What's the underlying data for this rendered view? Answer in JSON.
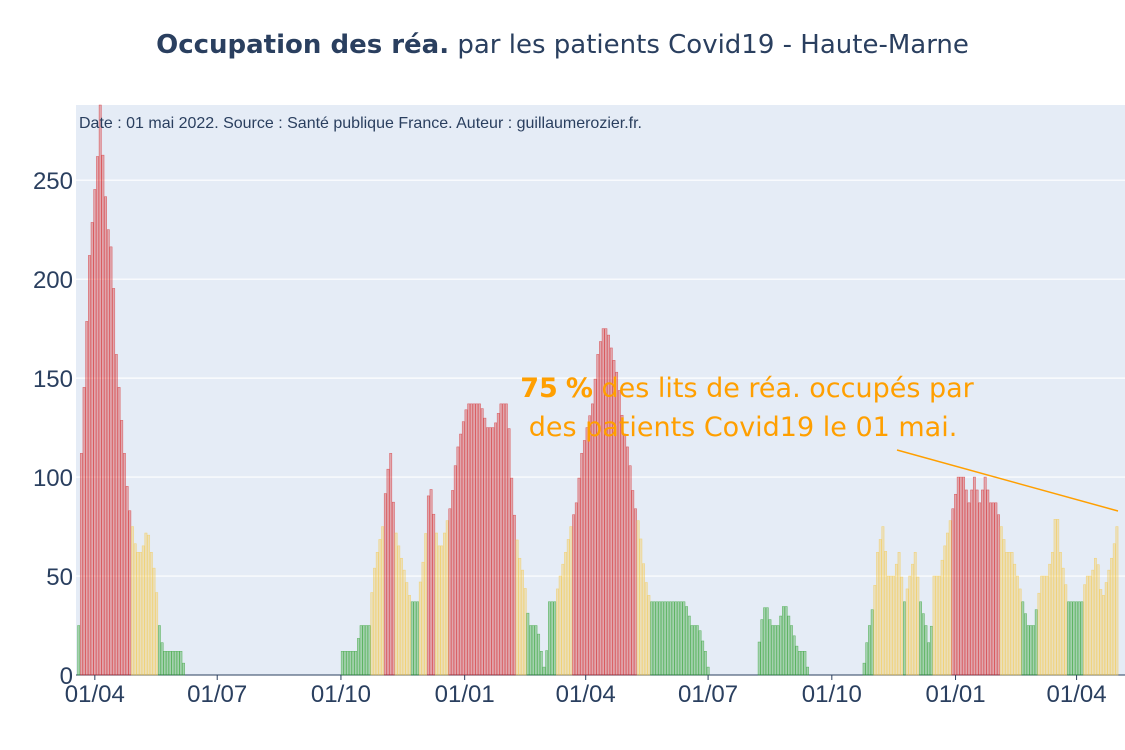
{
  "chart_data": {
    "type": "bar",
    "title_bold": "Occupation des réa.",
    "title_rest": " par les patients Covid19 - Haute-Marne",
    "source_note": "Date : 01 mai 2022. Source : Santé publique France. Auteur : guillaumerozier.fr.",
    "annotation": {
      "value": "75",
      "percent": "%",
      "line1_rest": " des lits de réa. occupés par",
      "line2": "des patients Covid19 le 01 mai."
    },
    "x_ticks": [
      {
        "label": "01/04",
        "date": "2020-04-01"
      },
      {
        "label": "01/07",
        "date": "2020-07-01"
      },
      {
        "label": "01/10",
        "date": "2020-10-01"
      },
      {
        "label": "01/01",
        "date": "2021-01-01"
      },
      {
        "label": "01/04",
        "date": "2021-04-01"
      },
      {
        "label": "01/07",
        "date": "2021-07-01"
      },
      {
        "label": "01/10",
        "date": "2021-10-01"
      },
      {
        "label": "01/01",
        "date": "2022-01-01"
      },
      {
        "label": "01/04",
        "date": "2022-04-01"
      }
    ],
    "y_ticks": [
      0,
      50,
      100,
      150,
      200,
      250
    ],
    "ylim": [
      0,
      288
    ],
    "xlim": [
      "2020-03-18",
      "2022-05-07"
    ],
    "colors": {
      "green": "#2ca02c",
      "yellow": "#f5c94a",
      "red": "#d62728",
      "annotation": "#ff9f00",
      "plot_bg": "#e5ecf6",
      "grid": "#ffffff",
      "text": "#2a3f5f"
    },
    "color_thresholds": {
      "green_below": 40,
      "red_from": 80
    },
    "series_points": [
      [
        "2020-03-18",
        0
      ],
      [
        "2020-03-20",
        25
      ],
      [
        "2020-03-22",
        112
      ],
      [
        "2020-03-25",
        162
      ],
      [
        "2020-03-28",
        212
      ],
      [
        "2020-03-31",
        237
      ],
      [
        "2020-04-03",
        262
      ],
      [
        "2020-04-05",
        288
      ],
      [
        "2020-04-08",
        250
      ],
      [
        "2020-04-11",
        225
      ],
      [
        "2020-04-14",
        212
      ],
      [
        "2020-04-17",
        162
      ],
      [
        "2020-04-20",
        137
      ],
      [
        "2020-04-23",
        112
      ],
      [
        "2020-04-26",
        87
      ],
      [
        "2020-04-29",
        75
      ],
      [
        "2020-05-02",
        62
      ],
      [
        "2020-05-06",
        62
      ],
      [
        "2020-05-10",
        75
      ],
      [
        "2020-05-13",
        62
      ],
      [
        "2020-05-16",
        50
      ],
      [
        "2020-05-19",
        25
      ],
      [
        "2020-05-22",
        12
      ],
      [
        "2020-05-30",
        12
      ],
      [
        "2020-06-05",
        12
      ],
      [
        "2020-06-07",
        0
      ],
      [
        "2020-09-30",
        0
      ],
      [
        "2020-10-02",
        12
      ],
      [
        "2020-10-12",
        12
      ],
      [
        "2020-10-16",
        25
      ],
      [
        "2020-10-22",
        25
      ],
      [
        "2020-10-25",
        50
      ],
      [
        "2020-10-28",
        62
      ],
      [
        "2020-11-01",
        75
      ],
      [
        "2020-11-04",
        100
      ],
      [
        "2020-11-07",
        112
      ],
      [
        "2020-11-10",
        75
      ],
      [
        "2020-11-14",
        62
      ],
      [
        "2020-11-18",
        50
      ],
      [
        "2020-11-22",
        37
      ],
      [
        "2020-11-27",
        37
      ],
      [
        "2020-12-02",
        62
      ],
      [
        "2020-12-06",
        100
      ],
      [
        "2020-12-10",
        75
      ],
      [
        "2020-12-14",
        62
      ],
      [
        "2020-12-18",
        75
      ],
      [
        "2020-12-22",
        87
      ],
      [
        "2020-12-26",
        112
      ],
      [
        "2020-12-30",
        125
      ],
      [
        "2021-01-03",
        137
      ],
      [
        "2021-01-08",
        137
      ],
      [
        "2021-01-13",
        137
      ],
      [
        "2021-01-18",
        125
      ],
      [
        "2021-01-23",
        125
      ],
      [
        "2021-01-28",
        137
      ],
      [
        "2021-02-02",
        137
      ],
      [
        "2021-02-06",
        87
      ],
      [
        "2021-02-10",
        62
      ],
      [
        "2021-02-14",
        50
      ],
      [
        "2021-02-18",
        25
      ],
      [
        "2021-02-24",
        25
      ],
      [
        "2021-02-27",
        12
      ],
      [
        "2021-03-02",
        0
      ],
      [
        "2021-03-05",
        37
      ],
      [
        "2021-03-09",
        37
      ],
      [
        "2021-03-13",
        50
      ],
      [
        "2021-03-17",
        62
      ],
      [
        "2021-03-21",
        75
      ],
      [
        "2021-03-25",
        87
      ],
      [
        "2021-03-29",
        112
      ],
      [
        "2021-04-02",
        125
      ],
      [
        "2021-04-06",
        137
      ],
      [
        "2021-04-10",
        162
      ],
      [
        "2021-04-14",
        175
      ],
      [
        "2021-04-17",
        175
      ],
      [
        "2021-04-21",
        162
      ],
      [
        "2021-04-25",
        150
      ],
      [
        "2021-04-29",
        125
      ],
      [
        "2021-05-03",
        112
      ],
      [
        "2021-05-07",
        87
      ],
      [
        "2021-05-11",
        75
      ],
      [
        "2021-05-15",
        50
      ],
      [
        "2021-05-19",
        37
      ],
      [
        "2021-05-25",
        37
      ],
      [
        "2021-05-30",
        37
      ],
      [
        "2021-06-04",
        37
      ],
      [
        "2021-06-09",
        37
      ],
      [
        "2021-06-14",
        37
      ],
      [
        "2021-06-19",
        25
      ],
      [
        "2021-06-24",
        25
      ],
      [
        "2021-06-29",
        12
      ],
      [
        "2021-07-02",
        0
      ],
      [
        "2021-08-06",
        0
      ],
      [
        "2021-08-09",
        25
      ],
      [
        "2021-08-13",
        37
      ],
      [
        "2021-08-17",
        25
      ],
      [
        "2021-08-22",
        25
      ],
      [
        "2021-08-27",
        37
      ],
      [
        "2021-09-01",
        25
      ],
      [
        "2021-09-06",
        12
      ],
      [
        "2021-09-11",
        12
      ],
      [
        "2021-09-14",
        0
      ],
      [
        "2021-10-24",
        0
      ],
      [
        "2021-10-26",
        12
      ],
      [
        "2021-10-29",
        25
      ],
      [
        "2021-11-01",
        37
      ],
      [
        "2021-11-04",
        62
      ],
      [
        "2021-11-08",
        75
      ],
      [
        "2021-11-12",
        50
      ],
      [
        "2021-11-16",
        50
      ],
      [
        "2021-11-20",
        62
      ],
      [
        "2021-11-24",
        37
      ],
      [
        "2021-11-28",
        50
      ],
      [
        "2021-12-02",
        62
      ],
      [
        "2021-12-06",
        37
      ],
      [
        "2021-12-10",
        25
      ],
      [
        "2021-12-13",
        12
      ],
      [
        "2021-12-16",
        50
      ],
      [
        "2021-12-20",
        50
      ],
      [
        "2021-12-23",
        62
      ],
      [
        "2021-12-27",
        75
      ],
      [
        "2021-12-31",
        87
      ],
      [
        "2022-01-03",
        100
      ],
      [
        "2022-01-07",
        100
      ],
      [
        "2022-01-11",
        87
      ],
      [
        "2022-01-15",
        100
      ],
      [
        "2022-01-19",
        87
      ],
      [
        "2022-01-23",
        100
      ],
      [
        "2022-01-27",
        87
      ],
      [
        "2022-01-31",
        87
      ],
      [
        "2022-02-04",
        75
      ],
      [
        "2022-02-08",
        62
      ],
      [
        "2022-02-12",
        62
      ],
      [
        "2022-02-16",
        50
      ],
      [
        "2022-02-20",
        37
      ],
      [
        "2022-02-24",
        25
      ],
      [
        "2022-02-28",
        25
      ],
      [
        "2022-03-03",
        37
      ],
      [
        "2022-03-06",
        50
      ],
      [
        "2022-03-10",
        50
      ],
      [
        "2022-03-14",
        62
      ],
      [
        "2022-03-17",
        87
      ],
      [
        "2022-03-20",
        62
      ],
      [
        "2022-03-23",
        50
      ],
      [
        "2022-03-26",
        37
      ],
      [
        "2022-04-01",
        37
      ],
      [
        "2022-04-05",
        37
      ],
      [
        "2022-04-08",
        50
      ],
      [
        "2022-04-12",
        50
      ],
      [
        "2022-04-16",
        62
      ],
      [
        "2022-04-20",
        37
      ],
      [
        "2022-04-24",
        50
      ],
      [
        "2022-04-28",
        62
      ],
      [
        "2022-05-01",
        75
      ]
    ]
  }
}
